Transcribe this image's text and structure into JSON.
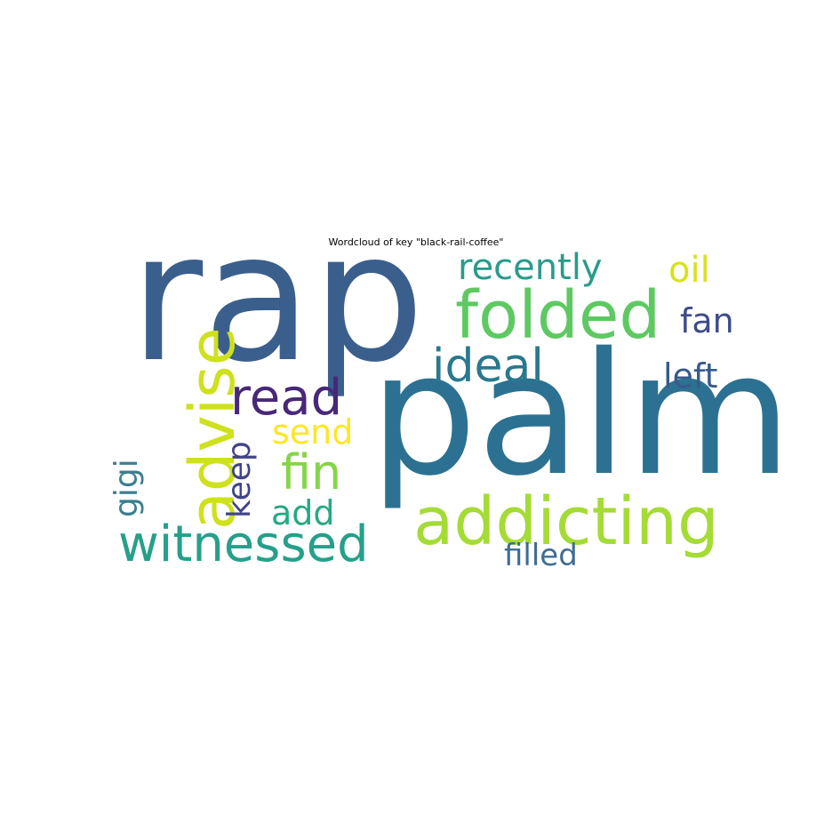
{
  "chart_data": {
    "type": "wordcloud",
    "title": "Wordcloud of key \"black-rail-coffee\"",
    "words": [
      {
        "text": "rap",
        "color": "#3b5f8d"
      },
      {
        "text": "palm",
        "color": "#2c7191"
      },
      {
        "text": "folded",
        "color": "#5ec962"
      },
      {
        "text": "addicting",
        "color": "#a5db36"
      },
      {
        "text": "advise",
        "color": "#cde11d"
      },
      {
        "text": "witnessed",
        "color": "#25a08a"
      },
      {
        "text": "ideal",
        "color": "#2a788e"
      },
      {
        "text": "read",
        "color": "#482878"
      },
      {
        "text": "recently",
        "color": "#2a9b8a"
      },
      {
        "text": "fin",
        "color": "#86d549"
      },
      {
        "text": "oil",
        "color": "#d8e219"
      },
      {
        "text": "fan",
        "color": "#3e4c8a"
      },
      {
        "text": "left",
        "color": "#38598c"
      },
      {
        "text": "send",
        "color": "#fde725"
      },
      {
        "text": "keep",
        "color": "#414487"
      },
      {
        "text": "gigi",
        "color": "#3b7e8f"
      },
      {
        "text": "add",
        "color": "#26a884"
      },
      {
        "text": "filled",
        "color": "#3d6c93"
      }
    ]
  }
}
